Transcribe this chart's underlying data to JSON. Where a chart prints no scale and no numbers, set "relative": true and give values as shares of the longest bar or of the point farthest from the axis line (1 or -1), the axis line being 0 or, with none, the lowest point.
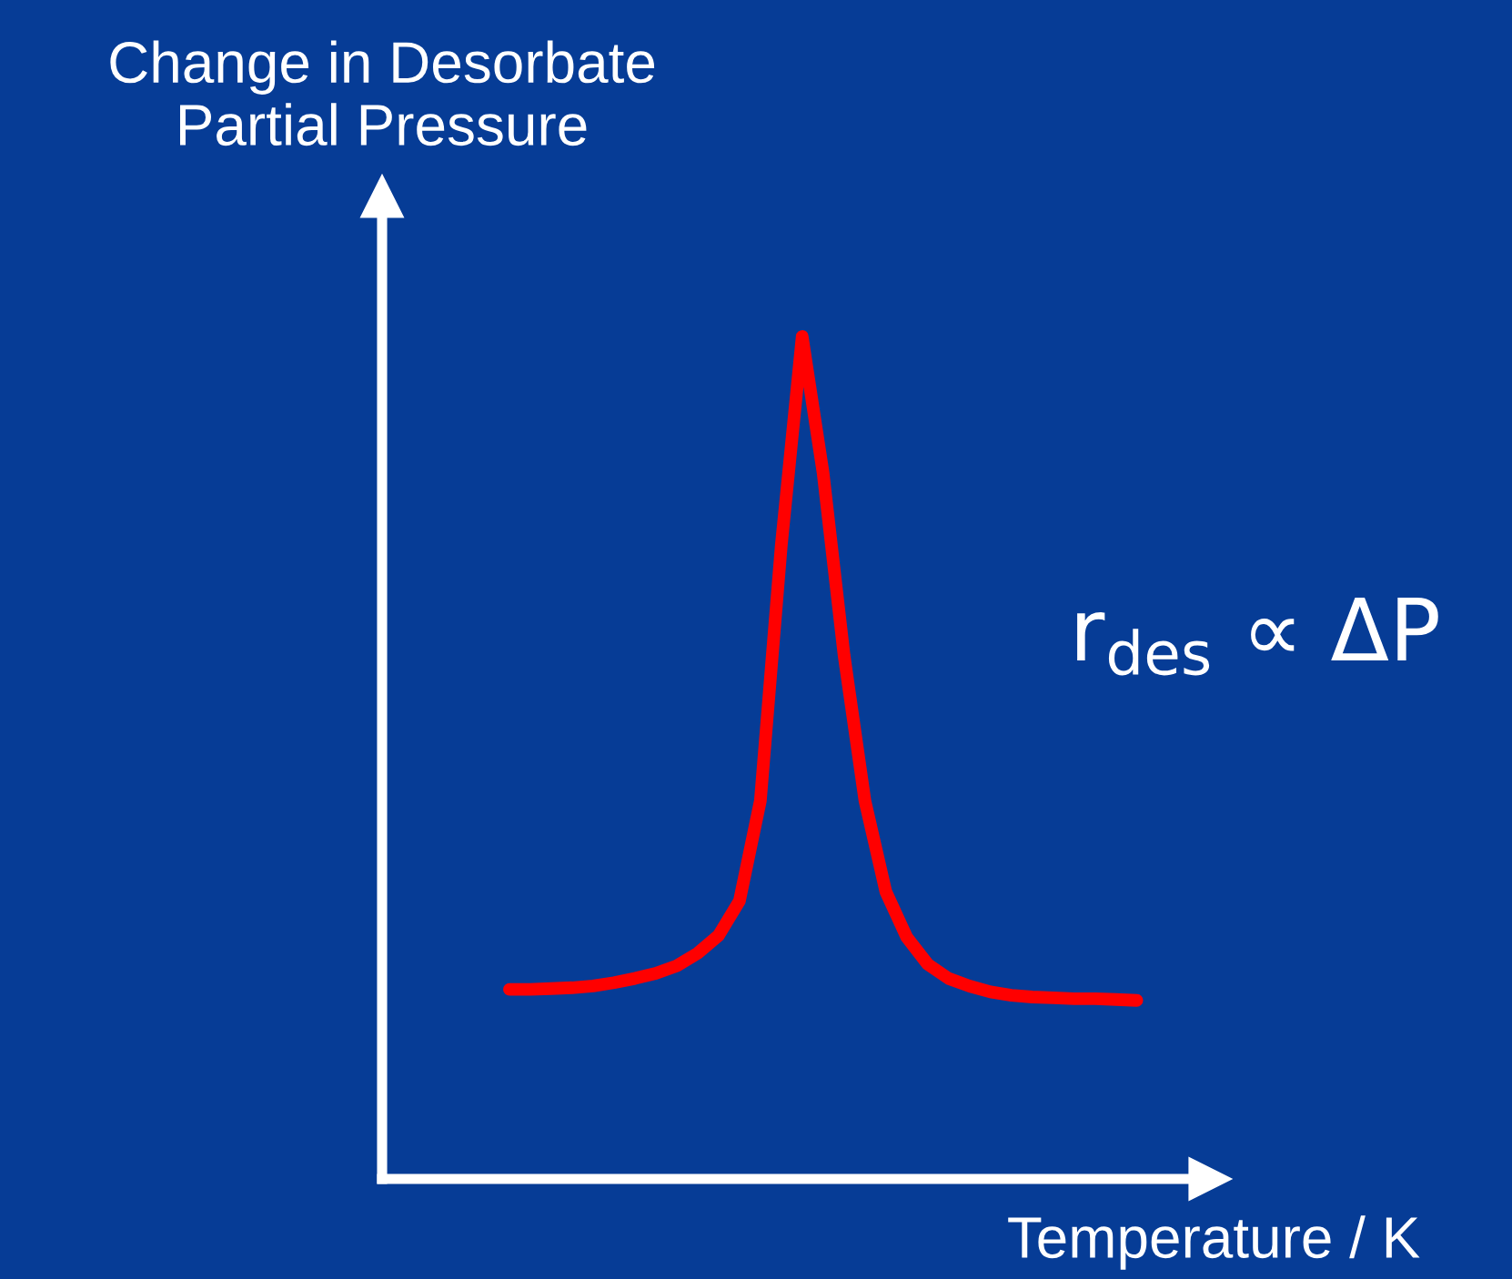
{
  "chart_data": {
    "type": "line",
    "relative": true,
    "ylabel": "Change in Desorbate\nPartial Pressure",
    "xlabel": "Temperature / K",
    "annotations": [
      "r$_{des}$ ∝ ΔP"
    ],
    "categories": [
      null,
      null,
      null,
      null,
      null,
      null,
      null,
      null,
      null,
      null,
      null,
      null,
      null,
      null,
      null,
      null,
      null,
      null,
      null,
      null,
      null,
      null,
      null,
      null,
      null,
      null,
      null,
      null,
      null,
      null,
      null
    ],
    "series": [
      {
        "color": "#ff0000",
        "values": [
          0.225,
          0.225,
          0.226,
          0.227,
          0.229,
          0.233,
          0.238,
          0.244,
          0.253,
          0.268,
          0.289,
          0.33,
          0.449,
          0.752,
          1,
          0.838,
          0.622,
          0.449,
          0.341,
          0.287,
          0.255,
          0.238,
          0.229,
          0.222,
          0.218,
          0.216,
          0.215,
          0.214,
          0.214,
          0.213,
          0.212
        ]
      }
    ],
    "legend": false,
    "marker": "none",
    "line_style": "solid"
  }
}
